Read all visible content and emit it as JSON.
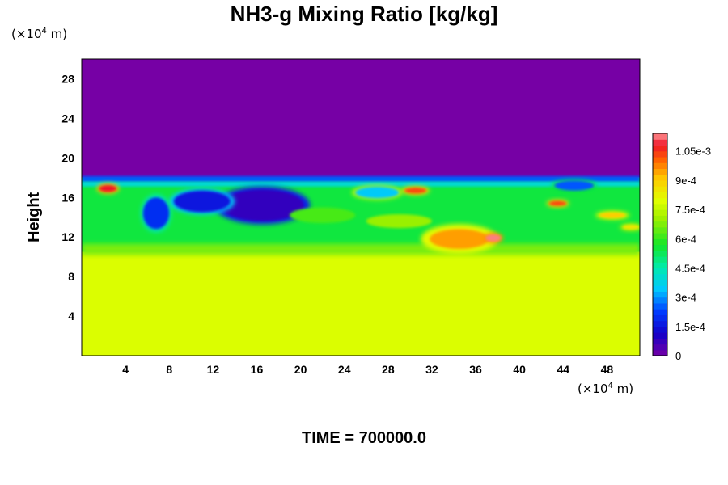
{
  "chart_data": {
    "type": "heatmap",
    "title": "NH3-g Mixing Ratio [kg/kg]",
    "xlabel": "",
    "ylabel": "Height",
    "x_unit_prefix": "(×10",
    "x_unit_exp": "4",
    "x_unit_suffix": " m)",
    "y_unit_prefix": "(×10",
    "y_unit_exp": "4",
    "y_unit_suffix": " m)",
    "xlim": [
      0,
      51
    ],
    "ylim": [
      0,
      30
    ],
    "x_ticks": [
      "4",
      "8",
      "12",
      "16",
      "20",
      "24",
      "28",
      "32",
      "36",
      "40",
      "44",
      "48"
    ],
    "y_ticks": [
      "4",
      "8",
      "12",
      "16",
      "20",
      "24",
      "28"
    ],
    "colorbar": {
      "range": [
        0,
        0.00114
      ],
      "labels": [
        "0",
        "1.5e-4",
        "3e-4",
        "4.5e-4",
        "6e-4",
        "7.5e-4",
        "9e-4",
        "1.05e-3"
      ],
      "label_values": [
        0,
        0.00015,
        0.0003,
        0.00045,
        0.0006,
        0.00075,
        0.0009,
        0.00105
      ]
    },
    "field": {
      "lower_layer_top_height": 10.5,
      "lower_layer_value": 0.00079,
      "mixed_layer_top_height": 18,
      "mixed_layer_value": 0.00055,
      "upper_layer_value": 0.0,
      "features": [
        {
          "kind": "low",
          "x": 16.5,
          "y": 15.2,
          "rx": 3.8,
          "ry": 1.6,
          "value": 8e-05
        },
        {
          "kind": "low",
          "x": 11,
          "y": 15.6,
          "rx": 2.6,
          "ry": 1.1,
          "value": 0.00016
        },
        {
          "kind": "low",
          "x": 6.8,
          "y": 14.4,
          "rx": 1.2,
          "ry": 1.6,
          "value": 0.0002
        },
        {
          "kind": "low",
          "x": 27,
          "y": 16.5,
          "rx": 2.0,
          "ry": 0.6,
          "value": 0.00035
        },
        {
          "kind": "low",
          "x": 45,
          "y": 17.2,
          "rx": 1.8,
          "ry": 0.5,
          "value": 0.00025
        },
        {
          "kind": "high",
          "x": 2.4,
          "y": 16.9,
          "rx": 0.8,
          "ry": 0.35,
          "value": 0.00108
        },
        {
          "kind": "high",
          "x": 30.5,
          "y": 16.7,
          "rx": 1.0,
          "ry": 0.3,
          "value": 0.00103
        },
        {
          "kind": "high",
          "x": 34.5,
          "y": 11.8,
          "rx": 2.7,
          "ry": 1.0,
          "value": 0.00095
        },
        {
          "kind": "high",
          "x": 37.6,
          "y": 11.9,
          "rx": 0.7,
          "ry": 0.35,
          "value": 0.00113
        },
        {
          "kind": "high",
          "x": 43.5,
          "y": 15.4,
          "rx": 0.8,
          "ry": 0.25,
          "value": 0.00103
        },
        {
          "kind": "high",
          "x": 48.5,
          "y": 14.2,
          "rx": 1.2,
          "ry": 0.3,
          "value": 0.0009
        },
        {
          "kind": "high",
          "x": 50.2,
          "y": 13.0,
          "rx": 0.8,
          "ry": 0.25,
          "value": 0.00085
        },
        {
          "kind": "mid",
          "x": 29.0,
          "y": 13.6,
          "rx": 3.0,
          "ry": 0.7,
          "value": 0.0007
        },
        {
          "kind": "mid",
          "x": 22.0,
          "y": 14.2,
          "rx": 3.0,
          "ry": 0.8,
          "value": 0.00062
        }
      ]
    }
  },
  "footer": {
    "time_label": "TIME = 700000.0"
  }
}
